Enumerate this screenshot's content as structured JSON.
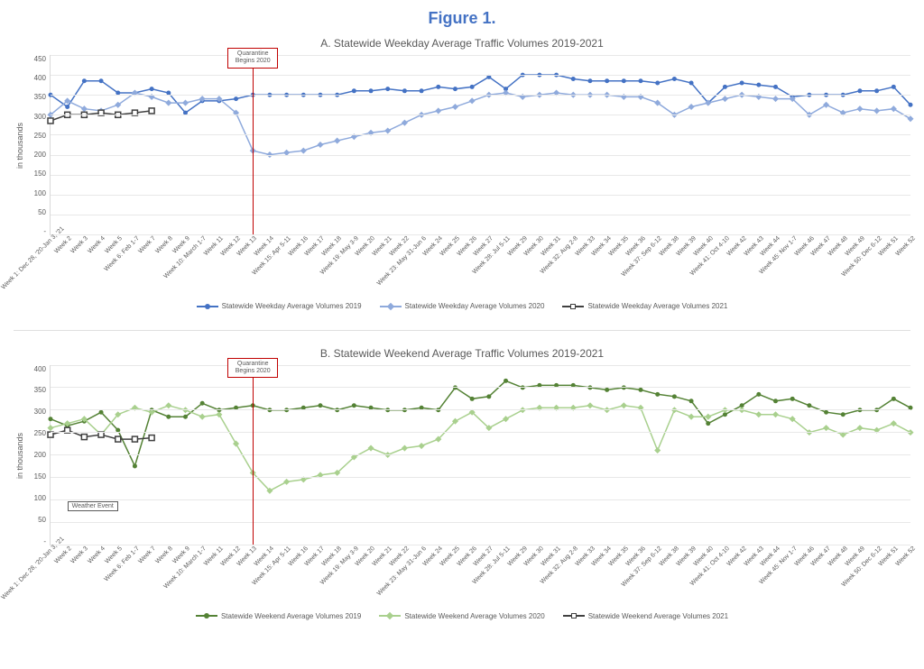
{
  "figure_title": "Figure 1.",
  "x_labels": [
    "Week 1: Dec 28, '20-Jan 3, '21",
    "Week 2",
    "Week 3",
    "Week 4",
    "Week 5",
    "Week 6: Feb 1-7",
    "Week 7",
    "Week 8",
    "Week 9",
    "Week 10: March 1-7",
    "Week 11",
    "Week 12",
    "Week 13",
    "Week 14",
    "Week 15: Apr 5-11",
    "Week 16",
    "Week 17",
    "Week 18",
    "Week 19: May 3-9",
    "Week 20",
    "Week 21",
    "Week 22",
    "Week 23: May 31-Jun 6",
    "Week 24",
    "Week 25",
    "Week 26",
    "Week 27",
    "Week 28: Jul 5-11",
    "Week 29",
    "Week 30",
    "Week 31",
    "Week 32: Aug 2-8",
    "Week 33",
    "Week 34",
    "Week 35",
    "Week 36",
    "Week 37: Sep 6-12",
    "Week 38",
    "Week 39",
    "Week 40",
    "Week 41: Oct 4-10",
    "Week 42",
    "Week 43",
    "Week 44",
    "Week 45: Nov 1-7",
    "Week 46",
    "Week 47",
    "Week 48",
    "Week 49",
    "Week 50: Dec 6-12",
    "Week 51",
    "Week 52"
  ],
  "chartA": {
    "title": "A. Statewide Weekday Average Traffic Volumes 2019-2021",
    "ylabel": "in thousands",
    "ymin": 0,
    "ymax": 450,
    "ytick_step": 50,
    "yticks": [
      "450",
      "400",
      "350",
      "300",
      "250",
      "200",
      "150",
      "100",
      "50",
      "-"
    ],
    "quarantine_label": "Quarantine Begins 2020",
    "quarantine_x_index": 12,
    "series": {
      "s2019": {
        "label": "Statewide Weekday Average Volumes 2019",
        "color": "#4472c4",
        "marker": "circle",
        "data": [
          350,
          320,
          385,
          385,
          355,
          355,
          365,
          355,
          305,
          335,
          335,
          340,
          350,
          350,
          350,
          350,
          350,
          350,
          360,
          360,
          365,
          360,
          360,
          370,
          365,
          370,
          395,
          365,
          400,
          400,
          400,
          390,
          385,
          385,
          385,
          385,
          380,
          390,
          380,
          330,
          370,
          380,
          375,
          370,
          345,
          350,
          350,
          350,
          360,
          360,
          370,
          325
        ]
      },
      "s2020": {
        "label": "Statewide Weekday Average Volumes 2020",
        "color": "#8faadc",
        "marker": "diamond",
        "data": [
          300,
          335,
          315,
          310,
          325,
          355,
          345,
          330,
          330,
          340,
          340,
          305,
          210,
          200,
          205,
          210,
          225,
          235,
          245,
          255,
          260,
          280,
          300,
          310,
          320,
          335,
          350,
          355,
          345,
          350,
          355,
          350,
          350,
          350,
          345,
          345,
          330,
          300,
          320,
          330,
          340,
          350,
          345,
          340,
          340,
          300,
          325,
          305,
          315,
          310,
          315,
          290
        ]
      },
      "s2021": {
        "label": "Statewide Weekday Average Volumes 2021",
        "color": "#404040",
        "marker": "square",
        "data": [
          285,
          300,
          300,
          305,
          300,
          305,
          310
        ]
      }
    }
  },
  "chartB": {
    "title": "B. Statewide Weekend Average Traffic Volumes 2019-2021",
    "ylabel": "in thousands",
    "ymin": 0,
    "ymax": 400,
    "ytick_step": 50,
    "yticks": [
      "400",
      "350",
      "300",
      "250",
      "200",
      "150",
      "100",
      "50",
      "-"
    ],
    "quarantine_label": "Quarantine Begins 2020",
    "quarantine_x_index": 12,
    "weather_label": "Weather Event",
    "series": {
      "s2019": {
        "label": "Statewide Weekend Average Volumes 2019",
        "color": "#548235",
        "marker": "circle",
        "data": [
          280,
          265,
          275,
          295,
          255,
          175,
          300,
          285,
          285,
          315,
          300,
          305,
          310,
          300,
          300,
          305,
          310,
          300,
          310,
          305,
          300,
          300,
          305,
          300,
          350,
          325,
          330,
          365,
          350,
          355,
          355,
          355,
          350,
          345,
          350,
          345,
          335,
          330,
          320,
          270,
          290,
          310,
          335,
          320,
          325,
          310,
          295,
          290,
          300,
          300,
          325,
          305
        ]
      },
      "s2020": {
        "label": "Statewide Weekend Average Volumes 2020",
        "color": "#a9d08e",
        "marker": "diamond",
        "data": [
          260,
          270,
          280,
          245,
          290,
          305,
          295,
          310,
          300,
          285,
          290,
          225,
          160,
          120,
          140,
          145,
          155,
          160,
          195,
          215,
          200,
          215,
          220,
          235,
          275,
          295,
          260,
          280,
          300,
          305,
          305,
          305,
          310,
          300,
          310,
          305,
          210,
          300,
          285,
          285,
          300,
          300,
          290,
          290,
          280,
          250,
          260,
          245,
          260,
          255,
          270,
          250
        ]
      },
      "s2021": {
        "label": "Statewide Weekend Average Volumes 2021",
        "color": "#404040",
        "marker": "square",
        "data": [
          245,
          255,
          240,
          245,
          235,
          235,
          238
        ]
      }
    }
  },
  "styling": {
    "title_color": "#4472c4",
    "axis_text_color": "#595959",
    "grid_color": "#e8e8e8",
    "annotation_red": "#c00000",
    "background": "#ffffff",
    "line_width": 1.5,
    "marker_radius": 2.5,
    "title_fontsize": 18,
    "subtitle_fontsize": 12,
    "axis_fontsize": 8,
    "legend_fontsize": 8
  }
}
